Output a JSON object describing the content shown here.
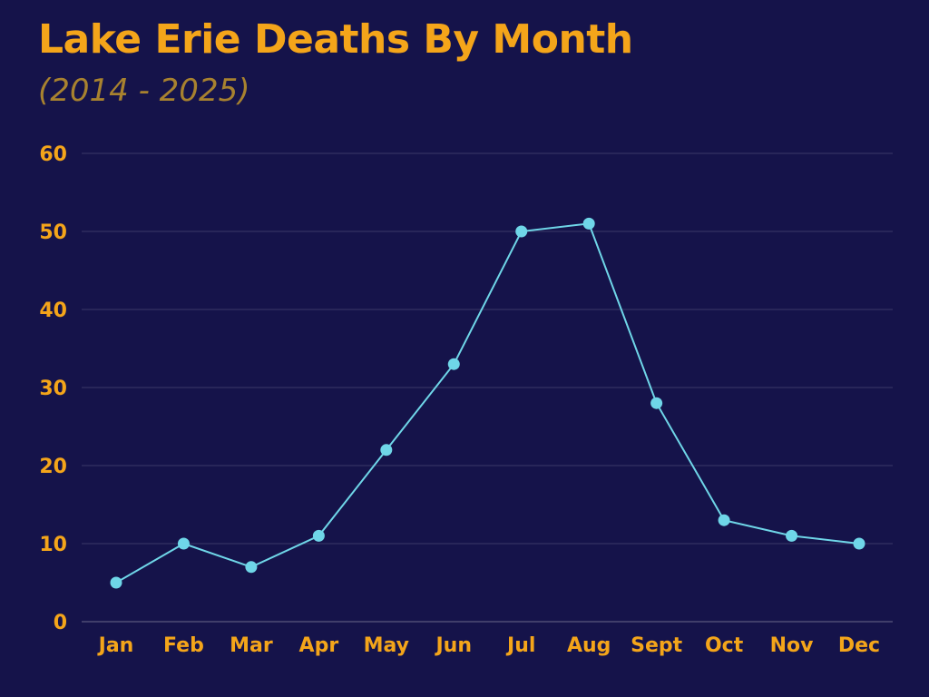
{
  "chart_data": {
    "type": "line",
    "title": "Lake Erie Deaths By Month",
    "subtitle": "(2014 - 2025)",
    "categories": [
      "Jan",
      "Feb",
      "Mar",
      "Apr",
      "May",
      "Jun",
      "Jul",
      "Aug",
      "Sept",
      "Oct",
      "Nov",
      "Dec"
    ],
    "values": [
      5,
      10,
      7,
      11,
      22,
      33,
      50,
      51,
      28,
      13,
      11,
      10
    ],
    "ylim": [
      0,
      60
    ],
    "yticks": [
      "0",
      "10",
      "20",
      "30",
      "40",
      "50",
      "60"
    ],
    "grid": true,
    "colors": {
      "background": "#15134a",
      "line": "#6fd6e8",
      "text": "#f4a51a",
      "subtitle": "#a8822f",
      "grid": "#3a3868"
    }
  }
}
